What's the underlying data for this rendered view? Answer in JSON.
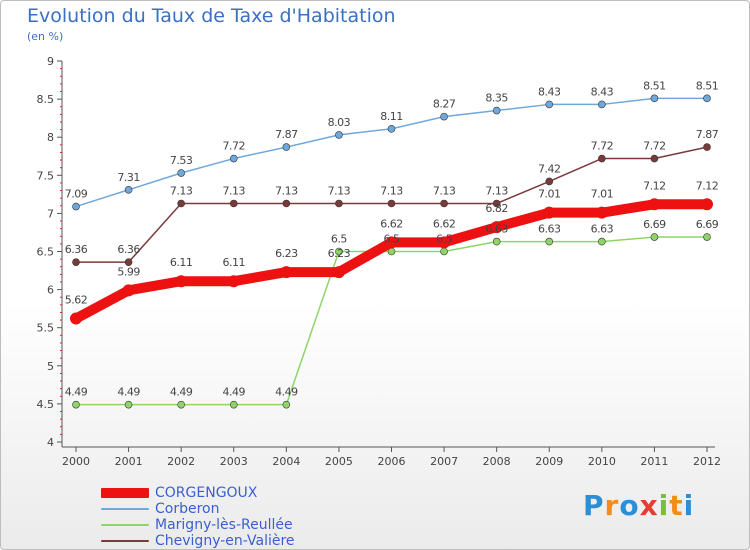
{
  "title": "Evolution du Taux de Taxe d'Habitation",
  "subtitle": "(en %)",
  "logo": {
    "letters": [
      "P",
      "r",
      "o",
      "x",
      "i",
      "t",
      "i"
    ],
    "colors": [
      "#2b8fd8",
      "#f28c1c",
      "#2b8fd8",
      "#e53d2f",
      "#7cbf2a",
      "#f28c1c",
      "#2b8fd8"
    ]
  },
  "chart_data": {
    "type": "line",
    "x": [
      "2000",
      "2001",
      "2002",
      "2003",
      "2004",
      "2005",
      "2006",
      "2007",
      "2008",
      "2009",
      "2010",
      "2011",
      "2012"
    ],
    "ylim": [
      4,
      9
    ],
    "yticks": [
      "4",
      "4.5",
      "5",
      "5.5",
      "6",
      "6.5",
      "7",
      "7.5",
      "8",
      "8.5",
      "9"
    ],
    "grid": false,
    "legend_position": "bottom",
    "series": [
      {
        "name": "CORGENGOUX",
        "color": "#ee1111",
        "values": [
          5.62,
          5.99,
          6.11,
          6.11,
          6.23,
          6.23,
          6.62,
          6.62,
          6.82,
          7.01,
          7.01,
          7.12,
          7.12
        ],
        "labels": [
          "5.62",
          "5.99",
          "6.11",
          "6.11",
          "6.23",
          "6.23",
          "6.62",
          "6.62",
          "6.82",
          "7.01",
          "7.01",
          "7.12",
          "7.12"
        ]
      },
      {
        "name": "Corberon",
        "color": "#6fa8dc",
        "values": [
          7.09,
          7.31,
          7.53,
          7.72,
          7.87,
          8.03,
          8.11,
          8.27,
          8.35,
          8.43,
          8.43,
          8.51,
          8.51
        ],
        "labels": [
          "7.09",
          "7.31",
          "7.53",
          "7.72",
          "7.87",
          "8.03",
          "8.11",
          "8.27",
          "8.35",
          "8.43",
          "8.43",
          "8.51",
          "8.51"
        ]
      },
      {
        "name": "Marigny-lès-Reullée",
        "color": "#8fd468",
        "values": [
          4.49,
          4.49,
          4.49,
          4.49,
          4.49,
          6.5,
          6.5,
          6.5,
          6.63,
          6.63,
          6.63,
          6.69,
          6.69
        ],
        "labels": [
          "4.49",
          "4.49",
          "4.49",
          "4.49",
          "4.49",
          "6.5",
          "6.5",
          "6.5",
          "6.63",
          "6.63",
          "6.63",
          "6.69",
          "6.69"
        ]
      },
      {
        "name": "Chevigny-en-Valière",
        "color": "#7a3a3a",
        "values": [
          6.36,
          6.36,
          7.13,
          7.13,
          7.13,
          7.13,
          7.13,
          7.13,
          7.13,
          7.42,
          7.72,
          7.72,
          7.87
        ],
        "labels": [
          "6.36",
          "6.36",
          "7.13",
          "7.13",
          "7.13",
          "7.13",
          "7.13",
          "7.13",
          "7.13",
          "7.42",
          "7.72",
          "7.72",
          "7.87"
        ]
      }
    ]
  }
}
